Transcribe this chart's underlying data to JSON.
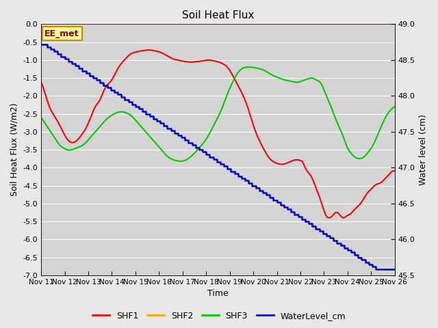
{
  "title": "Soil Heat Flux",
  "ylabel_left": "Soil Heat Flux (W/m2)",
  "ylabel_right": "Water level (cm)",
  "xlabel": "Time",
  "ylim_left": [
    -7.0,
    0.0
  ],
  "ylim_right": [
    45.5,
    49.0
  ],
  "yticks_left": [
    0.0,
    -0.5,
    -1.0,
    -1.5,
    -2.0,
    -2.5,
    -3.0,
    -3.5,
    -4.0,
    -4.5,
    -5.0,
    -5.5,
    -6.0,
    -6.5,
    -7.0
  ],
  "yticks_right": [
    49.0,
    48.5,
    48.0,
    47.5,
    47.0,
    46.5,
    46.0,
    45.5
  ],
  "background_color": "#e8e8e8",
  "plot_bg_color": "#d4d4d4",
  "grid_color": "#ffffff",
  "annotation_text": "EE_met",
  "annotation_bg": "#ffff99",
  "annotation_border": "#cc8800",
  "shf2_color": "#ffa500",
  "shf1_color": "#ff0000",
  "shf3_color": "#00cc00",
  "water_color": "#0000cc",
  "legend_labels": [
    "SHF1",
    "SHF2",
    "SHF3",
    "WaterLevel_cm"
  ],
  "x_tick_labels": [
    "Nov 11",
    "Nov 12",
    "Nov 13",
    "Nov 14",
    "Nov 15",
    "Nov 16",
    "Nov 17",
    "Nov 18",
    "Nov 19",
    "Nov 20",
    "Nov 21",
    "Nov 22",
    "Nov 23",
    "Nov 24",
    "Nov 25",
    "Nov 26"
  ],
  "shf1_x": [
    0.0,
    0.15,
    0.35,
    0.6,
    0.85,
    1.1,
    1.3,
    1.5,
    1.7,
    1.9,
    2.1,
    2.3,
    2.5,
    2.7,
    3.0,
    3.2,
    3.4,
    3.6,
    3.8,
    4.0,
    4.2,
    4.4,
    4.6,
    4.8,
    5.0,
    5.2,
    5.4,
    5.6,
    5.8,
    6.0,
    6.2,
    6.4,
    6.5,
    6.7,
    6.9,
    7.1,
    7.3,
    7.5,
    7.7,
    7.9,
    8.1,
    8.3,
    8.5,
    8.7,
    8.9,
    9.1,
    9.3,
    9.5,
    9.7,
    9.9,
    10.1,
    10.3,
    10.5,
    10.7,
    10.85,
    11.0,
    11.1,
    11.2,
    11.35,
    11.5,
    11.65,
    11.8,
    11.9,
    12.0,
    12.1,
    12.2,
    12.35,
    12.5,
    12.65,
    12.8,
    12.95,
    13.1,
    13.25,
    13.4,
    13.55,
    13.7,
    13.85,
    14.0,
    14.15,
    14.3,
    14.45,
    14.6,
    14.75,
    14.9,
    15.0
  ],
  "shf1_y": [
    -1.62,
    -1.9,
    -2.3,
    -2.6,
    -2.9,
    -3.2,
    -3.3,
    -3.25,
    -3.1,
    -2.9,
    -2.6,
    -2.3,
    -2.1,
    -1.8,
    -1.55,
    -1.3,
    -1.1,
    -0.95,
    -0.83,
    -0.78,
    -0.75,
    -0.73,
    -0.72,
    -0.74,
    -0.77,
    -0.83,
    -0.9,
    -0.97,
    -1.0,
    -1.03,
    -1.05,
    -1.06,
    -1.05,
    -1.04,
    -1.02,
    -1.0,
    -1.02,
    -1.05,
    -1.1,
    -1.2,
    -1.4,
    -1.65,
    -1.9,
    -2.2,
    -2.6,
    -3.0,
    -3.3,
    -3.55,
    -3.75,
    -3.85,
    -3.9,
    -3.9,
    -3.85,
    -3.8,
    -3.78,
    -3.8,
    -3.85,
    -4.0,
    -4.15,
    -4.3,
    -4.55,
    -4.8,
    -5.0,
    -5.2,
    -5.35,
    -5.4,
    -5.35,
    -5.25,
    -5.3,
    -5.4,
    -5.35,
    -5.3,
    -5.2,
    -5.1,
    -5.0,
    -4.85,
    -4.7,
    -4.6,
    -4.5,
    -4.45,
    -4.4,
    -4.3,
    -4.2,
    -4.1,
    -4.1
  ],
  "shf3_x": [
    0.0,
    0.1,
    0.2,
    0.35,
    0.5,
    0.65,
    0.8,
    0.95,
    1.1,
    1.3,
    1.5,
    1.7,
    1.9,
    2.1,
    2.3,
    2.5,
    2.7,
    2.9,
    3.1,
    3.3,
    3.5,
    3.7,
    3.9,
    4.1,
    4.3,
    4.5,
    4.7,
    4.9,
    5.1,
    5.3,
    5.5,
    5.7,
    5.9,
    6.1,
    6.3,
    6.5,
    6.7,
    6.9,
    7.1,
    7.3,
    7.5,
    7.7,
    7.9,
    8.1,
    8.3,
    8.5,
    8.7,
    8.9,
    9.1,
    9.3,
    9.5,
    9.7,
    9.9,
    10.1,
    10.3,
    10.5,
    10.65,
    10.8,
    10.9,
    11.0,
    11.1,
    11.2,
    11.35,
    11.5,
    11.65,
    11.8,
    11.95,
    12.1,
    12.3,
    12.5,
    12.7,
    12.85,
    13.0,
    13.15,
    13.3,
    13.5,
    13.7,
    13.9,
    14.1,
    14.3,
    14.5,
    14.7,
    14.9,
    15.0
  ],
  "shf3_y": [
    -2.6,
    -2.7,
    -2.8,
    -2.95,
    -3.1,
    -3.25,
    -3.38,
    -3.45,
    -3.5,
    -3.5,
    -3.45,
    -3.4,
    -3.3,
    -3.15,
    -3.0,
    -2.85,
    -2.7,
    -2.58,
    -2.5,
    -2.45,
    -2.45,
    -2.5,
    -2.6,
    -2.75,
    -2.9,
    -3.05,
    -3.2,
    -3.35,
    -3.5,
    -3.65,
    -3.75,
    -3.8,
    -3.82,
    -3.8,
    -3.72,
    -3.6,
    -3.45,
    -3.3,
    -3.1,
    -2.85,
    -2.6,
    -2.3,
    -1.95,
    -1.65,
    -1.4,
    -1.25,
    -1.2,
    -1.2,
    -1.22,
    -1.25,
    -1.3,
    -1.38,
    -1.45,
    -1.5,
    -1.55,
    -1.58,
    -1.6,
    -1.62,
    -1.62,
    -1.6,
    -1.58,
    -1.55,
    -1.52,
    -1.5,
    -1.55,
    -1.6,
    -1.75,
    -2.0,
    -2.3,
    -2.65,
    -2.95,
    -3.2,
    -3.45,
    -3.6,
    -3.7,
    -3.75,
    -3.7,
    -3.55,
    -3.35,
    -3.05,
    -2.75,
    -2.5,
    -2.35,
    -2.3
  ],
  "water_x_raw": [
    0.0,
    0.25,
    0.4,
    0.55,
    0.7,
    0.85,
    1.0,
    1.15,
    1.3,
    1.45,
    1.6,
    1.75,
    1.9,
    2.05,
    2.2,
    2.35,
    2.5,
    2.65,
    2.8,
    2.95,
    3.1,
    3.25,
    3.4,
    3.55,
    3.7,
    3.85,
    4.0,
    4.15,
    4.3,
    4.45,
    4.6,
    4.75,
    4.9,
    5.05,
    5.2,
    5.35,
    5.5,
    5.65,
    5.8,
    5.95,
    6.1,
    6.25,
    6.4,
    6.55,
    6.7,
    6.85,
    7.0,
    7.15,
    7.3,
    7.45,
    7.6,
    7.75,
    7.9,
    8.05,
    8.2,
    8.35,
    8.5,
    8.65,
    8.8,
    8.95,
    9.1,
    9.25,
    9.4,
    9.55,
    9.7,
    9.85,
    10.0,
    10.15,
    10.3,
    10.45,
    10.6,
    10.75,
    10.9,
    11.05,
    11.2,
    11.35,
    11.5,
    11.65,
    11.8,
    11.95,
    12.1,
    12.25,
    12.4,
    12.55,
    12.7,
    12.85,
    13.0,
    13.15,
    13.3,
    13.45,
    13.6,
    13.75,
    13.9,
    14.05,
    14.2,
    14.35,
    14.5,
    14.65,
    14.8,
    14.95,
    15.0
  ],
  "water_y_raw": [
    48.72,
    48.68,
    48.65,
    48.62,
    48.58,
    48.55,
    48.52,
    48.48,
    48.45,
    48.42,
    48.38,
    48.35,
    48.32,
    48.28,
    48.25,
    48.22,
    48.18,
    48.15,
    48.12,
    48.08,
    48.05,
    48.02,
    47.98,
    47.95,
    47.92,
    47.88,
    47.85,
    47.82,
    47.78,
    47.75,
    47.72,
    47.68,
    47.65,
    47.62,
    47.58,
    47.55,
    47.52,
    47.48,
    47.45,
    47.42,
    47.38,
    47.35,
    47.32,
    47.28,
    47.25,
    47.22,
    47.18,
    47.15,
    47.12,
    47.08,
    47.05,
    47.02,
    46.98,
    46.95,
    46.92,
    46.88,
    46.85,
    46.82,
    46.78,
    46.75,
    46.72,
    46.68,
    46.65,
    46.62,
    46.58,
    46.55,
    46.52,
    46.48,
    46.45,
    46.42,
    46.38,
    46.35,
    46.32,
    46.28,
    46.25,
    46.22,
    46.18,
    46.15,
    46.12,
    46.08,
    46.05,
    46.02,
    45.98,
    45.95,
    45.92,
    45.88,
    45.85,
    45.82,
    45.78,
    45.75,
    45.72,
    45.68,
    45.65,
    45.62,
    45.58,
    45.58,
    45.58,
    45.58,
    45.58,
    45.58,
    45.58
  ]
}
